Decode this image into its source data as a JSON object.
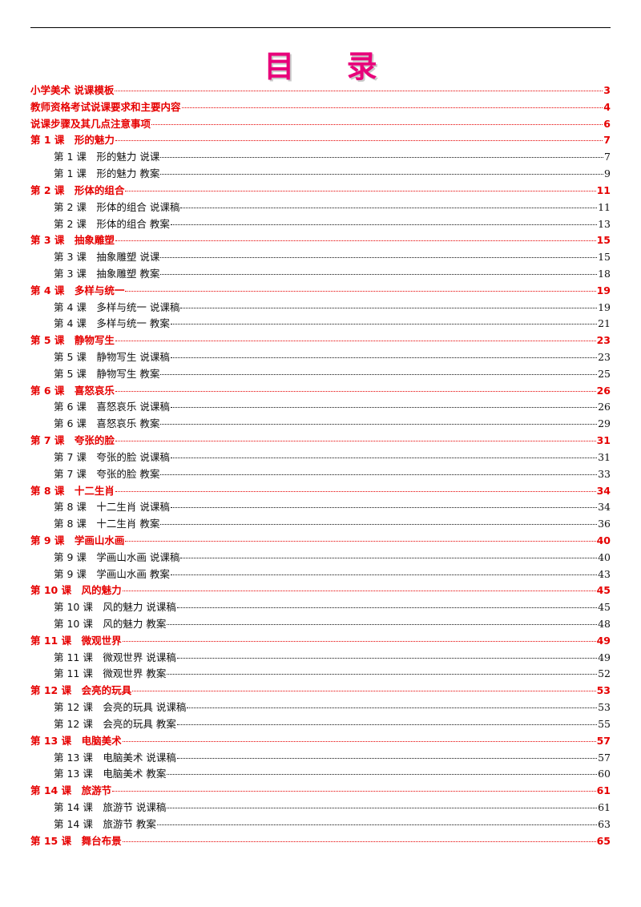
{
  "title": "目  录",
  "colors": {
    "title": "#e8007a",
    "chapter": "#e60000",
    "section": "#111111"
  },
  "entries": [
    {
      "level": 1,
      "text": "小学美术 说课模板",
      "page": "3"
    },
    {
      "level": 1,
      "text": "教师资格考试说课要求和主要内容",
      "page": "4"
    },
    {
      "level": 1,
      "text": "说课步骤及其几点注意事项",
      "page": "6"
    },
    {
      "level": 1,
      "text": "第 1 课　形的魅力",
      "page": "7"
    },
    {
      "level": 2,
      "text": "第 1 课　形的魅力 说课",
      "page": "7"
    },
    {
      "level": 2,
      "text": "第 1 课　形的魅力 教案",
      "page": "9"
    },
    {
      "level": 1,
      "text": "第 2 课　形体的组合",
      "page": "11"
    },
    {
      "level": 2,
      "text": "第 2 课　形体的组合 说课稿",
      "page": "11"
    },
    {
      "level": 2,
      "text": "第 2 课　形体的组合 教案",
      "page": "13"
    },
    {
      "level": 1,
      "text": "第 3 课　抽象雕塑",
      "page": "15"
    },
    {
      "level": 2,
      "text": "第 3 课　抽象雕塑 说课",
      "page": "15"
    },
    {
      "level": 2,
      "text": "第 3 课　抽象雕塑 教案",
      "page": "18"
    },
    {
      "level": 1,
      "text": "第 4 课　多样与统一",
      "page": "19"
    },
    {
      "level": 2,
      "text": "第 4 课　多样与统一 说课稿",
      "page": "19"
    },
    {
      "level": 2,
      "text": "第 4 课　多样与统一 教案",
      "page": "21"
    },
    {
      "level": 1,
      "text": "第 5 课　静物写生",
      "page": "23"
    },
    {
      "level": 2,
      "text": "第 5 课　静物写生 说课稿",
      "page": "23"
    },
    {
      "level": 2,
      "text": "第 5 课　静物写生 教案",
      "page": "25"
    },
    {
      "level": 1,
      "text": "第 6 课　喜怒哀乐",
      "page": "26"
    },
    {
      "level": 2,
      "text": "第 6 课　喜怒哀乐 说课稿",
      "page": "26"
    },
    {
      "level": 2,
      "text": "第 6 课　喜怒哀乐 教案",
      "page": "29"
    },
    {
      "level": 1,
      "text": "第 7 课　夸张的脸",
      "page": "31"
    },
    {
      "level": 2,
      "text": "第 7 课　夸张的脸 说课稿",
      "page": "31"
    },
    {
      "level": 2,
      "text": "第 7 课　夸张的脸 教案",
      "page": "33"
    },
    {
      "level": 1,
      "text": "第 8 课　十二生肖",
      "page": "34"
    },
    {
      "level": 2,
      "text": "第 8 课　十二生肖 说课稿",
      "page": "34"
    },
    {
      "level": 2,
      "text": "第 8 课　十二生肖 教案",
      "page": "36"
    },
    {
      "level": 1,
      "text": "第 9 课　学画山水画",
      "page": "40"
    },
    {
      "level": 2,
      "text": "第 9 课　学画山水画 说课稿",
      "page": "40"
    },
    {
      "level": 2,
      "text": "第 9 课　学画山水画 教案",
      "page": "43"
    },
    {
      "level": 1,
      "text": "第 10 课　风的魅力",
      "page": "45"
    },
    {
      "level": 2,
      "text": "第 10 课　风的魅力 说课稿",
      "page": "45"
    },
    {
      "level": 2,
      "text": "第 10 课　风的魅力 教案",
      "page": "48"
    },
    {
      "level": 1,
      "text": "第 11 课　微观世界",
      "page": "49"
    },
    {
      "level": 2,
      "text": "第 11 课　微观世界 说课稿",
      "page": "49"
    },
    {
      "level": 2,
      "text": "第 11 课　微观世界 教案",
      "page": "52"
    },
    {
      "level": 1,
      "text": "第 12 课　会亮的玩具",
      "page": "53"
    },
    {
      "level": 2,
      "text": "第 12 课　会亮的玩具 说课稿",
      "page": "53"
    },
    {
      "level": 2,
      "text": "第 12 课　会亮的玩具 教案",
      "page": "55"
    },
    {
      "level": 1,
      "text": "第 13 课　电脑美术",
      "page": "57"
    },
    {
      "level": 2,
      "text": "第 13 课　电脑美术 说课稿",
      "page": "57"
    },
    {
      "level": 2,
      "text": "第 13 课　电脑美术 教案",
      "page": "60"
    },
    {
      "level": 1,
      "text": "第 14 课　旅游节",
      "page": "61"
    },
    {
      "level": 2,
      "text": "第 14 课　旅游节 说课稿",
      "page": "61"
    },
    {
      "level": 2,
      "text": "第 14 课　旅游节 教案",
      "page": "63"
    },
    {
      "level": 1,
      "text": "第 15 课　舞台布景",
      "page": "65"
    }
  ]
}
